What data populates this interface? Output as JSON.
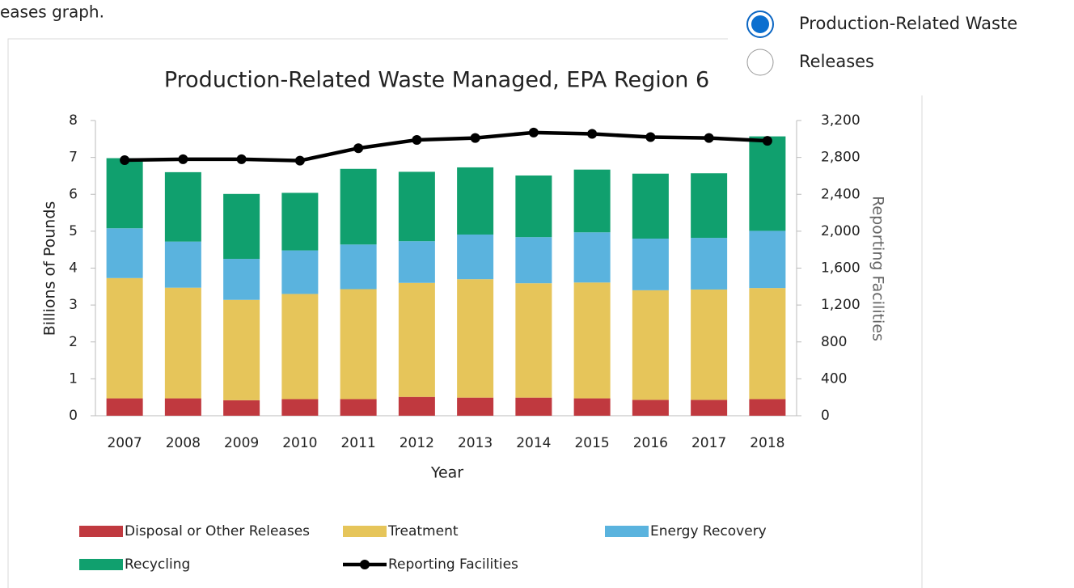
{
  "caption_fragment": "eases graph.",
  "options": [
    {
      "label": "Production-Related Waste",
      "selected": true
    },
    {
      "label": "Releases",
      "selected": false
    }
  ],
  "chart_data": {
    "type": "bar",
    "title": "Production-Related Waste Managed, EPA Region 6",
    "x_label": "Year",
    "y_label": "Billions of Pounds",
    "y2_label": "Reporting Facilities",
    "categories": [
      "2007",
      "2008",
      "2009",
      "2010",
      "2011",
      "2012",
      "2013",
      "2014",
      "2015",
      "2016",
      "2017",
      "2018"
    ],
    "stacked": true,
    "series": [
      {
        "name": "Disposal or Other Releases",
        "color": "#c0393f",
        "values": [
          0.47,
          0.47,
          0.42,
          0.45,
          0.45,
          0.51,
          0.49,
          0.49,
          0.47,
          0.43,
          0.43,
          0.45
        ]
      },
      {
        "name": "Treatment",
        "color": "#e6c55a",
        "values": [
          3.26,
          3.0,
          2.72,
          2.85,
          2.98,
          3.09,
          3.21,
          3.1,
          3.14,
          2.97,
          2.99,
          3.01
        ]
      },
      {
        "name": "Energy Recovery",
        "color": "#5ab3de",
        "values": [
          1.35,
          1.25,
          1.11,
          1.18,
          1.21,
          1.13,
          1.21,
          1.25,
          1.36,
          1.4,
          1.4,
          1.55
        ]
      },
      {
        "name": "Recycling",
        "color": "#10a06e",
        "values": [
          1.9,
          1.88,
          1.76,
          1.56,
          2.05,
          1.88,
          1.82,
          1.67,
          1.7,
          1.76,
          1.75,
          2.56
        ]
      },
      {
        "name": "Reporting Facilities",
        "color": "#000000",
        "type": "line",
        "axis": "y2",
        "values": [
          2770,
          2780,
          2780,
          2765,
          2900,
          2990,
          3010,
          3070,
          3055,
          3020,
          3010,
          2980
        ]
      }
    ],
    "ylim": [
      0,
      8
    ],
    "yticks": [
      0,
      1,
      2,
      3,
      4,
      5,
      6,
      7,
      8
    ],
    "y2lim": [
      0,
      3200
    ],
    "y2ticks": [
      0,
      400,
      800,
      {
        "value": 1200,
        "label": "1,200"
      },
      {
        "value": 1600,
        "label": "1,600"
      },
      {
        "value": 2000,
        "label": "2,000"
      },
      {
        "value": 2400,
        "label": "2,400"
      },
      {
        "value": 2800,
        "label": "2,800"
      },
      {
        "value": 3200,
        "label": "3,200"
      }
    ],
    "legend": "bottom",
    "grid": false
  }
}
